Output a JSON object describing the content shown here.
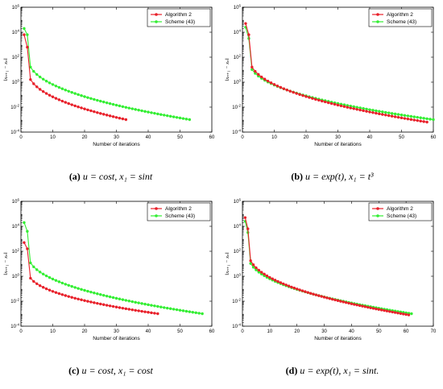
{
  "chart_data": [
    {
      "type": "line",
      "xlabel": "Number of iterations",
      "ylabel": "‖xₙ₊₁ − xₙ‖",
      "xlim": [
        0,
        60
      ],
      "xticks": [
        0,
        10,
        20,
        30,
        40,
        50,
        60
      ],
      "ylim_exp": [
        -4,
        6
      ],
      "yscale": "log",
      "yticks_exp": [
        -4,
        -2,
        0,
        2,
        4,
        6
      ],
      "legend": "top-right",
      "caption": {
        "tag": "(a)",
        "text": "u = cost,  x₁ = sint"
      },
      "series": [
        {
          "name": "Algorithm 2",
          "color": "#e8202a",
          "n": 33,
          "curve": {
            "a0": 3.8,
            "drop": 1.0,
            "tail_end": -3.0
          }
        },
        {
          "name": "Scheme (43)",
          "color": "#33ee33",
          "n": 53,
          "curve": {
            "a0": 4.3,
            "drop": 0.5,
            "tail_end": -3.0
          }
        }
      ]
    },
    {
      "type": "line",
      "xlabel": "Number of iterations",
      "ylabel": "‖xₙ₊₁ − xₙ‖",
      "xlim": [
        0,
        60
      ],
      "xticks": [
        0,
        10,
        20,
        30,
        40,
        50,
        60
      ],
      "ylim_exp": [
        -4,
        6
      ],
      "yscale": "log",
      "yticks_exp": [
        -4,
        -2,
        0,
        2,
        4,
        6
      ],
      "legend": "top-right",
      "caption": {
        "tag": "(b)",
        "text": "u = exp(t),  x₁ = t³"
      },
      "series": [
        {
          "name": "Algorithm 2",
          "color": "#e8202a",
          "n": 58,
          "curve": {
            "a0": 4.7,
            "drop": 0.9,
            "tail_end": -3.2
          }
        },
        {
          "name": "Scheme (43)",
          "color": "#33ee33",
          "n": 60,
          "curve": {
            "a0": 4.4,
            "drop": 0.9,
            "tail_end": -3.0
          }
        }
      ]
    },
    {
      "type": "line",
      "xlabel": "Number of iterations",
      "ylabel": "‖xₙ₊₁ − xₙ‖",
      "xlim": [
        0,
        60
      ],
      "xticks": [
        0,
        10,
        20,
        30,
        40,
        50,
        60
      ],
      "ylim_exp": [
        -4,
        6
      ],
      "yscale": "log",
      "yticks_exp": [
        -4,
        -2,
        0,
        2,
        4,
        6
      ],
      "legend": "top-right",
      "caption": {
        "tag": "(c)",
        "text": "u = cost,  x₁ = cost"
      },
      "series": [
        {
          "name": "Algorithm 2",
          "color": "#e8202a",
          "n": 43,
          "curve": {
            "a0": 2.7,
            "drop": 0.5,
            "tail_end": -3.0
          }
        },
        {
          "name": "Scheme (43)",
          "color": "#33ee33",
          "n": 57,
          "curve": {
            "a0": 4.3,
            "drop": 0.7,
            "tail_end": -3.0
          }
        }
      ]
    },
    {
      "type": "line",
      "xlabel": "Number of iterations",
      "ylabel": "‖xₙ₊₁ − xₙ‖",
      "xlim": [
        0,
        70
      ],
      "xticks": [
        0,
        10,
        20,
        30,
        40,
        50,
        60,
        70
      ],
      "ylim_exp": [
        -4,
        6
      ],
      "yscale": "log",
      "yticks_exp": [
        -4,
        -2,
        0,
        2,
        4,
        6
      ],
      "legend": "top-right",
      "caption": {
        "tag": "(d)",
        "text": "u = exp(t),  x₁ = sint."
      },
      "series": [
        {
          "name": "Algorithm 2",
          "color": "#e8202a",
          "n": 61,
          "curve": {
            "a0": 4.7,
            "drop": 0.9,
            "tail_end": -3.1
          }
        },
        {
          "name": "Scheme (43)",
          "color": "#33ee33",
          "n": 62,
          "curve": {
            "a0": 4.4,
            "drop": 0.9,
            "tail_end": -3.0
          }
        }
      ]
    }
  ]
}
